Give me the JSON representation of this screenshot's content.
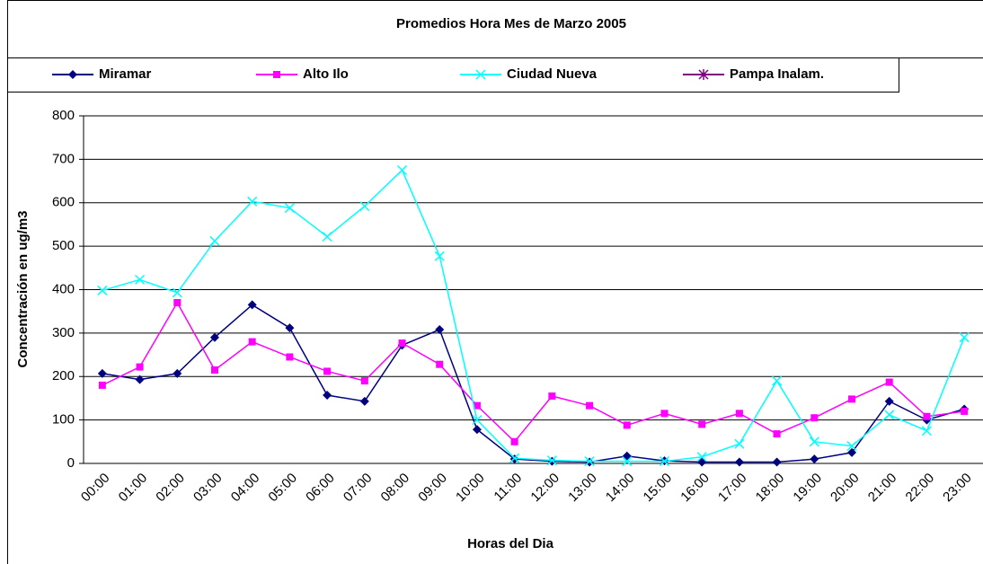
{
  "chart_data": {
    "type": "line",
    "title": "Promedios Hora Mes de Marzo 2005",
    "x_label": "Horas del Dia",
    "y_label": "Concentración en ug/m3",
    "categories": [
      "00:00",
      "01:00",
      "02:00",
      "03:00",
      "04:00",
      "05:00",
      "06:00",
      "07:00",
      "08:00",
      "09:00",
      "10:00",
      "11:00",
      "12:00",
      "13:00",
      "14:00",
      "15:00",
      "16:00",
      "17:00",
      "18:00",
      "19:00",
      "20:00",
      "21:00",
      "22:00",
      "23:00"
    ],
    "series": [
      {
        "name": "Miramar",
        "color": "#000080",
        "marker": "diamond",
        "values": [
          207,
          193,
          207,
          290,
          365,
          312,
          157,
          143,
          272,
          308,
          78,
          10,
          5,
          3,
          17,
          6,
          3,
          3,
          3,
          10,
          25,
          143,
          100,
          125
        ]
      },
      {
        "name": "Alto Ilo",
        "color": "#ff00ff",
        "marker": "square",
        "values": [
          180,
          222,
          370,
          215,
          280,
          245,
          212,
          190,
          277,
          228,
          133,
          50,
          155,
          133,
          88,
          115,
          90,
          115,
          68,
          105,
          148,
          187,
          108,
          120
        ]
      },
      {
        "name": "Ciudad Nueva",
        "color": "#00ffff",
        "marker": "x",
        "values": [
          398,
          423,
          393,
          512,
          603,
          588,
          522,
          592,
          675,
          477,
          100,
          12,
          7,
          5,
          5,
          5,
          15,
          45,
          190,
          50,
          40,
          112,
          75,
          290
        ]
      },
      {
        "name": "Pampa Inalam.",
        "color": "#800080",
        "marker": "star",
        "values": [
          null,
          null,
          null,
          null,
          null,
          null,
          null,
          null,
          null,
          null,
          null,
          null,
          null,
          null,
          null,
          null,
          null,
          null,
          null,
          null,
          null,
          null,
          null,
          null
        ]
      }
    ],
    "ylim": [
      0,
      800
    ],
    "yticks": [
      0,
      100,
      200,
      300,
      400,
      500,
      600,
      700,
      800
    ],
    "grid": true,
    "legend": "top"
  }
}
